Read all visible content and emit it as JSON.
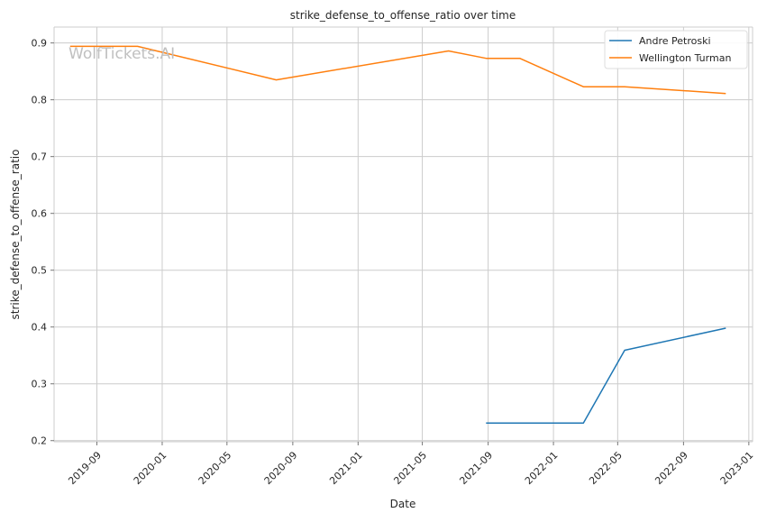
{
  "chart_data": {
    "type": "line",
    "title": "strike_defense_to_offense_ratio over time",
    "xlabel": "Date",
    "ylabel": "strike_defense_to_offense_ratio",
    "watermark": "WolfTickets.AI",
    "x_ticks": [
      "2019-09",
      "2020-01",
      "2020-05",
      "2020-09",
      "2021-01",
      "2021-05",
      "2021-09",
      "2022-01",
      "2022-05",
      "2022-09",
      "2023-01"
    ],
    "y_ticks": [
      "0.2",
      "0.3",
      "0.4",
      "0.5",
      "0.6",
      "0.7",
      "0.8",
      "0.9"
    ],
    "xlim": [
      "2019-06-13",
      "2023-01-08"
    ],
    "ylim": [
      0.198,
      0.928
    ],
    "grid": true,
    "legend_position": "top-right",
    "series": [
      {
        "name": "Andre Petroski",
        "color": "#1f77b4",
        "points": [
          {
            "x": "2021-08-28",
            "y": 0.231
          },
          {
            "x": "2022-02-26",
            "y": 0.231
          },
          {
            "x": "2022-05-14",
            "y": 0.359
          },
          {
            "x": "2022-11-19",
            "y": 0.398
          }
        ]
      },
      {
        "name": "Wellington Turman",
        "color": "#ff7f0e",
        "points": [
          {
            "x": "2019-07-13",
            "y": 0.894
          },
          {
            "x": "2019-11-16",
            "y": 0.894
          },
          {
            "x": "2020-08-01",
            "y": 0.835
          },
          {
            "x": "2021-06-19",
            "y": 0.886
          },
          {
            "x": "2021-08-28",
            "y": 0.873
          },
          {
            "x": "2021-10-30",
            "y": 0.873
          },
          {
            "x": "2022-02-26",
            "y": 0.823
          },
          {
            "x": "2022-05-14",
            "y": 0.823
          },
          {
            "x": "2022-11-19",
            "y": 0.811
          }
        ]
      }
    ]
  }
}
